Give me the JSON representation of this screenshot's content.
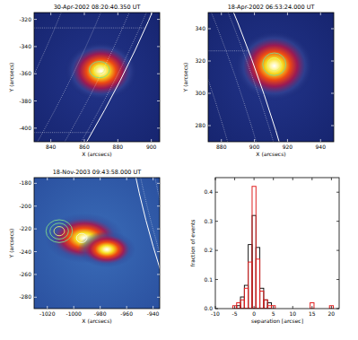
{
  "chart_data": [
    {
      "type": "image",
      "title": "30-Apr-2002 08:20:40.350 UT",
      "xlabel": "X (arcsecs)",
      "ylabel": "Y (arcsecs)",
      "xlim": [
        830,
        905
      ],
      "ylim": [
        -410,
        -315
      ],
      "xticks": [
        840,
        860,
        880,
        900
      ],
      "yticks": [
        -320,
        -340,
        -360,
        -380,
        -400
      ],
      "limb_radius": 954,
      "sources": [
        {
          "x": 870,
          "y": -358,
          "rx": 22,
          "ry": 22
        }
      ],
      "contours": [
        {
          "x": 869,
          "y": -357,
          "radius": [
            6,
            3
          ]
        }
      ]
    },
    {
      "type": "image",
      "title": "18-Apr-2002 06:53:24.000 UT",
      "xlabel": "X (arcsecs)",
      "ylabel": "Y (arcsecs)",
      "xlim": [
        872,
        948
      ],
      "ylim": [
        270,
        350
      ],
      "xticks": [
        880,
        900,
        920,
        940
      ],
      "yticks": [
        280,
        300,
        320,
        340
      ],
      "limb_radius": 954,
      "sources": [
        {
          "x": 912,
          "y": 317,
          "rx": 24,
          "ry": 22
        }
      ],
      "contours": [
        {
          "x": 912,
          "y": 318,
          "radius": [
            7,
            4
          ]
        }
      ]
    },
    {
      "type": "image",
      "title": "18-Nov-2003 09:43:58.000 UT",
      "xlabel": "X (arcsecs)",
      "ylabel": "Y (arcsecs)",
      "xlim": [
        -1030,
        -935
      ],
      "ylim": [
        -290,
        -175
      ],
      "xticks": [
        -1020,
        -1000,
        -980,
        -960,
        -940
      ],
      "yticks": [
        -180,
        -200,
        -220,
        -240,
        -260,
        -280
      ],
      "limb_radius": 969,
      "sources": [
        {
          "x": -992,
          "y": -228,
          "rx": 30,
          "ry": 22
        },
        {
          "x": -975,
          "y": -238,
          "rx": 22,
          "ry": 16
        }
      ],
      "contours": [
        {
          "x": -1011,
          "y": -222,
          "radius": [
            10,
            7,
            4
          ]
        },
        {
          "x": -994,
          "y": -228,
          "radius": [
            4
          ]
        }
      ]
    },
    {
      "type": "histogram",
      "xlabel": "separation [arcsec]",
      "ylabel": "fraction of events",
      "xlim": [
        -10,
        22
      ],
      "ylim": [
        0,
        0.45
      ],
      "xticks": [
        -10,
        -5,
        0,
        5,
        10,
        15,
        20
      ],
      "yticks": [
        {
          "value": 0,
          "label": "0.0"
        },
        0.1,
        0.2,
        0.3,
        0.4
      ],
      "bins": [
        -6.5,
        -5.5,
        -4.5,
        -3.5,
        -2.5,
        -1.5,
        -0.5,
        0.5,
        1.5,
        2.5,
        3.5,
        4.5,
        5.5,
        6.5,
        7.5,
        8.5,
        9.5,
        10.5,
        11.5,
        12.5,
        13.5,
        14.5,
        15.5,
        16.5,
        17.5,
        18.5,
        19.5,
        20.5
      ],
      "series": [
        {
          "color": "#000000",
          "values": [
            0,
            0,
            0.01,
            0.04,
            0.08,
            0.22,
            0.32,
            0.21,
            0.07,
            0.03,
            0.02,
            0,
            0,
            0,
            0,
            0,
            0,
            0,
            0,
            0,
            0,
            0,
            0,
            0,
            0,
            0,
            0
          ]
        },
        {
          "color": "#e02020",
          "values": [
            0,
            0.01,
            0.02,
            0.03,
            0.07,
            0.16,
            0.42,
            0.17,
            0.06,
            0.03,
            0.01,
            0.01,
            0,
            0,
            0,
            0,
            0,
            0,
            0,
            0,
            0,
            0.02,
            0,
            0,
            0,
            0,
            0.01
          ]
        }
      ]
    }
  ]
}
